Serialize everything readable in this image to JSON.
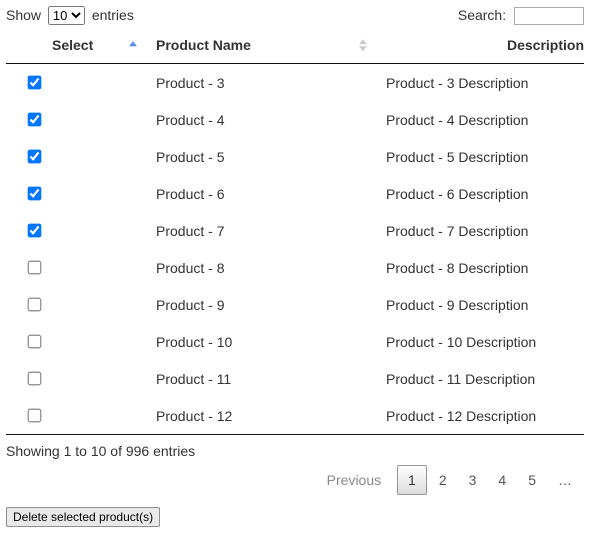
{
  "lengthMenu": {
    "prefix": "Show",
    "suffix": "entries",
    "selected": "10",
    "options": [
      "10"
    ]
  },
  "search": {
    "label": "Search:",
    "value": ""
  },
  "columns": {
    "select": {
      "label": "Select",
      "sort": "asc"
    },
    "name": {
      "label": "Product Name",
      "sort": "both"
    },
    "desc": {
      "label": "Description",
      "sort": "none"
    }
  },
  "rows": [
    {
      "checked": true,
      "name": "Product - 3",
      "desc": "Product - 3 Description"
    },
    {
      "checked": true,
      "name": "Product - 4",
      "desc": "Product - 4 Description"
    },
    {
      "checked": true,
      "name": "Product - 5",
      "desc": "Product - 5 Description"
    },
    {
      "checked": true,
      "name": "Product - 6",
      "desc": "Product - 6 Description"
    },
    {
      "checked": true,
      "name": "Product - 7",
      "desc": "Product - 7 Description"
    },
    {
      "checked": false,
      "name": "Product - 8",
      "desc": "Product - 8 Description"
    },
    {
      "checked": false,
      "name": "Product - 9",
      "desc": "Product - 9 Description"
    },
    {
      "checked": false,
      "name": "Product - 10",
      "desc": "Product - 10 Description"
    },
    {
      "checked": false,
      "name": "Product - 11",
      "desc": "Product - 11 Description"
    },
    {
      "checked": false,
      "name": "Product - 12",
      "desc": "Product - 12 Description"
    }
  ],
  "info": "Showing 1 to 10 of 996 entries",
  "pagination": {
    "previous": "Previous",
    "pages": [
      {
        "label": "1",
        "current": true
      },
      {
        "label": "2",
        "current": false
      },
      {
        "label": "3",
        "current": false
      },
      {
        "label": "4",
        "current": false
      },
      {
        "label": "5",
        "current": false
      },
      {
        "label": "…",
        "ellipsis": true
      }
    ]
  },
  "deleteButton": "Delete selected product(s)",
  "colors": {
    "sort_active": "#5b8def",
    "sort_inactive": "#cccccc",
    "border": "#111111"
  }
}
